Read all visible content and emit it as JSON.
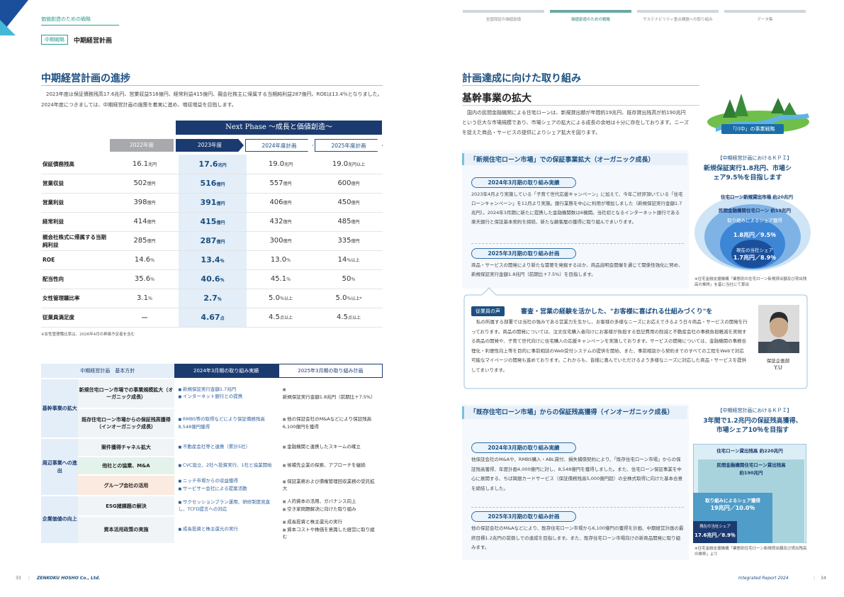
{
  "header": {
    "section_tag": "価値創造のための戦略",
    "sub_badge": "中期戦略",
    "sub_title": "中期経営計画",
    "nav": [
      "全国保証の価値創造",
      "価値創造のための戦略",
      "サステナビリティ重点課題への取り組み",
      "データ集"
    ]
  },
  "left": {
    "title": "中期経営計画の進捗",
    "intro": "2023年度は保証債務残高17.6兆円、営業収益516億円、経常利益415億円、親会社株主に帰属する当期純利益287億円、ROEは13.4％となりました。2024年度につきましては、中期経営計画の施策を着実に進め、増収増益を目指します。",
    "next_phase": "Next Phase ～成長と価値創造～",
    "columns": [
      "2022年度",
      "2023年度",
      "2024年度計画",
      "2025年度計画"
    ],
    "rows": [
      {
        "label": "保証債務残高",
        "v": [
          [
            "16.1",
            "兆円"
          ],
          [
            "17.6",
            "兆円"
          ],
          [
            "19.0",
            "兆円"
          ],
          [
            "19.0",
            "兆円以上"
          ]
        ]
      },
      {
        "label": "営業収益",
        "v": [
          [
            "502",
            "億円"
          ],
          [
            "516",
            "億円"
          ],
          [
            "557",
            "億円"
          ],
          [
            "600",
            "億円"
          ]
        ]
      },
      {
        "label": "営業利益",
        "v": [
          [
            "398",
            "億円"
          ],
          [
            "391",
            "億円"
          ],
          [
            "406",
            "億円"
          ],
          [
            "450",
            "億円"
          ]
        ]
      },
      {
        "label": "経常利益",
        "v": [
          [
            "414",
            "億円"
          ],
          [
            "415",
            "億円"
          ],
          [
            "432",
            "億円"
          ],
          [
            "485",
            "億円"
          ]
        ]
      },
      {
        "label": "親会社株式に帰属する当期純利益",
        "v": [
          [
            "285",
            "億円"
          ],
          [
            "287",
            "億円"
          ],
          [
            "300",
            "億円"
          ],
          [
            "335",
            "億円"
          ]
        ]
      },
      {
        "label": "ROE",
        "v": [
          [
            "14.6",
            "％"
          ],
          [
            "13.4",
            "％"
          ],
          [
            "13.0",
            "％"
          ],
          [
            "14",
            "％以上"
          ]
        ]
      },
      {
        "label": "配当性向",
        "v": [
          [
            "35.6",
            "％"
          ],
          [
            "40.6",
            "％"
          ],
          [
            "45.1",
            "％"
          ],
          [
            "50",
            "％"
          ]
        ]
      },
      {
        "label": "女性管理職比率",
        "v": [
          [
            "3.1",
            "％"
          ],
          [
            "2.7",
            "％"
          ],
          [
            "5.0",
            "％以上"
          ],
          [
            "5.0",
            "％以上*"
          ]
        ]
      },
      {
        "label": "従業員満足度",
        "v": [
          [
            "ー",
            ""
          ],
          [
            "4.67",
            "点"
          ],
          [
            "4.5",
            "点以上"
          ],
          [
            "4.5",
            "点以上"
          ]
        ]
      }
    ],
    "table_note": "※女性管理職比率は、2026年4月の昇格予定者を含む",
    "strategy_headers": [
      "中期経営計画　基本方針",
      "2024年3月期の取り組み実績",
      "2025年3月期の取り組み計画"
    ],
    "strategy_groups": [
      {
        "group": "基幹事業の拡大",
        "rows": [
          {
            "sub": "新規住宅ローン市場での事業規模拡大（オーガニック成長）",
            "actual": [
              "新規保証実行金額1.7兆円",
              "インターネット銀行との提携"
            ],
            "plan": [
              "新規保証実行金額1.8兆円（前期比＋7.5%）"
            ]
          },
          {
            "sub": "既存住宅ローン市場からの保証残高獲得（インオーガニック成長）",
            "actual": [
              "RMBS等の取得などにより保証債務残高8,548億円獲得"
            ],
            "plan": [
              "他の保証会社のM&Aなどにより保証残高6,100億円を獲得"
            ]
          }
        ]
      },
      {
        "group": "周辺事業への進出",
        "rows": [
          {
            "sub": "案件獲得チャネル拡大",
            "actual": [
              "不動産会社等と連携（累計5社）"
            ],
            "plan": [
              "金融機関と連携したスキームの確立"
            ]
          },
          {
            "sub": "他社との協業、M&A",
            "actual": [
              "CVC設立、2社へ投資実行、1社と協業開始"
            ],
            "plan": [
              "候補先企業の探索、アプローチを継続"
            ]
          },
          {
            "sub": "グループ会社の活用",
            "actual": [
              "ニッチ市場からの収益獲得",
              "サービサー会社による提案活動"
            ],
            "plan": [
              "保証業務および債権管理回収業務の受託拡大"
            ]
          }
        ]
      },
      {
        "group": "企業価値の向上",
        "rows": [
          {
            "sub": "ESG諸課題の解決",
            "actual": [
              "サクセッションプラン運用、研修制度見直し、TCFD提言への対応"
            ],
            "plan": [
              "人的資本の活用、ガバナンス向上",
              "空き家問題解決に向けた取り組み"
            ]
          },
          {
            "sub": "資本活用政策の実施",
            "actual": [
              "成長投資と株主還元の実行"
            ],
            "plan": [
              "成長投資と株主還元の実行",
              "資本コストや株価を意識した経営に取り組む"
            ]
          }
        ]
      }
    ]
  },
  "right": {
    "title": "計画達成に向けた取り組み",
    "subtitle": "基幹事業の拡大",
    "intro": "国内の民間金融機関による住宅ローンは、新規貸出額が年間約19兆円、既存貸出残高が約190兆円という巨大な市場規模であり、市場シェアの拡大による成長の余地は十分に存在しております。ニーズを捉えた商品・サービスの提供によりシェア拡大を図ります。",
    "river_badge": "「川中」の事業戦略",
    "sec1": {
      "title": "「新規住宅ローン市場」での保証事業拡大（オーガニック成長）",
      "pill_actual": "2024年3月期の取り組み実績",
      "text_actual": "2023年4月より実施している「子育て世代応援キャンペーン」に加えて、今年ご好評頂いている「住宅ローンキャンペーン」を11月より実施。銀行業態を中心に利用が増加しました（新規保証実行金額1.7兆円）。2024年3月期に新たに提携した金融機関数は6機関。当社初となるインターネット銀行である楽天銀行と保証基本契約を締結、新たな顧客層の獲得に取り組んでまいります。",
      "pill_plan": "2025年3月期の取り組み計画",
      "text_plan": "商品・サービスの開発により新たな需要を発掘するほか、商品説明会開催を通じて関係性強化に努め、新規保証実行金額1.8兆円（前期比＋7.5%）を目指します。",
      "kpi_head": "【中期経営計画におけるＫＰＩ】",
      "kpi_body": "新規保証実行1.8兆円、市場シェア9.5％を目指します",
      "c_market": "住宅ローン新規貸出市場",
      "c_market_v": "約20兆円",
      "c_private": "民間金融機関住宅ローン",
      "c_private_v": "約19兆円",
      "c_target_l": "取り組みによるシェア獲得",
      "c_target_v": "1.8兆円／9.5％",
      "c_current_l": "現在の当社シェア",
      "c_current_v": "1.7兆円／8.9％",
      "note": "※住宅金融支援機構「業態別の住宅ローン新規貸出額及び貸出残高の推移」を基に当社にて算出"
    },
    "voice": {
      "label": "従業員の声",
      "title": "審査・営業の経験を活かした、\"お客様に喜ばれる仕組みづくり\"を",
      "text": "私の所属する部署では当社の強みである営業力を生かし、お客様の多様なニーズにお応えできるよう日々商品・サービスの開発を行っております。商品の開発については、注文住宅購入者向けにお客様が負担する登記費用の削減と不動産会社の事務負担軽減を実現する商品の開発や、子育て世代向けに住宅購入の応援キャンペーンを実施しております。サービスの開発については、金融機関の事務合理化・利便性向上等を目的に事前相談のWeb受付システムの提供を開始、また、事前相談から契約までのすべての工程をWebで対応可能なマイページの開発も進めております。これからも、皆様に喜んでいただけるよう多様なニーズに対応した商品・サービスを提供してまいります。",
      "dept": "保証企画部",
      "name": "Y.U"
    },
    "sec2": {
      "title": "「既存住宅ローン市場」からの保証残高獲得（インオーガニック成長）",
      "pill_actual": "2024年3月期の取り組み実績",
      "text_actual": "他保証会社のM&Aや、RMBS購入・ABL貸付、損失補償契約により、「既存住宅ローン市場」からの保証残高獲得、年度計画4,000億円に対し、8,548億円を獲得しました。また、住宅ローン保証事業を中心に展開する、ちば興銀カードサービス（保証債務残高5,000億円超）の全株式取得に向けた基本合意を締結しました。",
      "pill_plan": "2025年3月期の取り組み計画",
      "text_plan": "他の保証会社のM&Aなどにより、既存住宅ローン市場から6,100億円の獲得を計画、中期経営計画の最終目標1.2兆円の前倒しでの達成を目指します。また、既存住宅ローン市場向けの新商品開発に取り組みます。",
      "kpi_head": "【中期経営計画におけるＫＰＩ】",
      "kpi_body": "3年間で1.2兆円の保証残高獲得、市場シェア10％を目指す",
      "b_market": "住宅ローン貸出残高",
      "b_market_v": "約220兆円",
      "b_private": "民間金融機関住宅ローン貸出残高",
      "b_private_v": "約190兆円",
      "b_target_l": "取り組みによるシェア獲得",
      "b_target_v": "19兆円／10.0％",
      "b_current_l": "現在の当社シェア",
      "b_current_v": "17.6兆円／8.9％",
      "note": "※住宅金融支援機構「業態別住宅ローン新規貸出額及び貸出残高の推移」より"
    }
  },
  "footer": {
    "page_left": "33",
    "company": "ZENKOKU HOSHO Co., Ltd.",
    "report": "Integrated Report 2024",
    "page_right": "34"
  },
  "colors": {
    "navy": "#1b3b70",
    "blue": "#1b4f80",
    "teal": "#2a9d8f",
    "light": "#e3eef8"
  }
}
